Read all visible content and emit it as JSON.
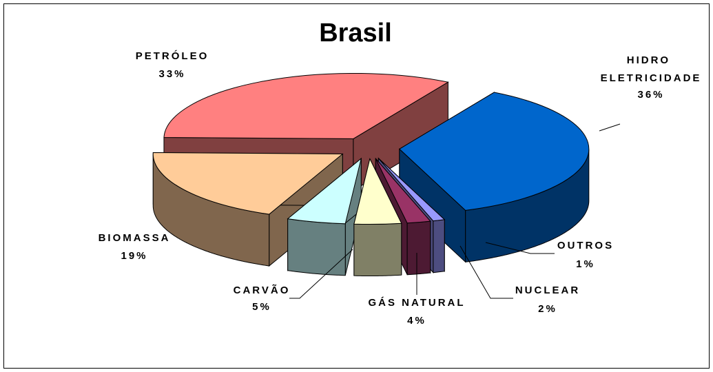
{
  "chart_data": {
    "type": "pie3d",
    "title": "Brasil",
    "categories": [
      "HIDRO ELETRICIDADE",
      "OUTROS",
      "NUCLEAR",
      "GÁS NATURAL",
      "CARVÃO",
      "BIOMASSA",
      "PETRÓLEO"
    ],
    "values": [
      36,
      1,
      2,
      4,
      5,
      19,
      33
    ],
    "value_labels": [
      "36%",
      "1%",
      "2%",
      "4%",
      "5%",
      "19%",
      "33%"
    ],
    "colors": [
      "#0066cc",
      "#9999ff",
      "#993366",
      "#ffffcc",
      "#ccffff",
      "#ffcc99",
      "#ff8080"
    ]
  }
}
